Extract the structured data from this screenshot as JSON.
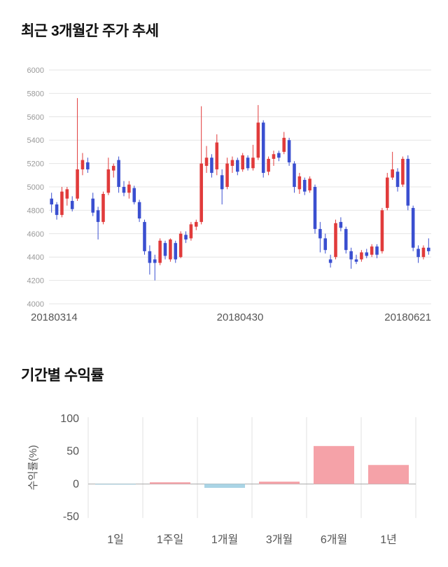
{
  "chart_data": [
    {
      "type": "candlestick",
      "title": "최근 3개월간 주가 추세",
      "ylim": [
        4000,
        6000
      ],
      "yticks": [
        4000,
        4200,
        4400,
        4600,
        4800,
        5000,
        5200,
        5400,
        5600,
        5800,
        6000
      ],
      "xticks": [
        {
          "label": "20180314",
          "pos": 0.0,
          "anchor": "start",
          "dx": -26
        },
        {
          "label": "20180430",
          "pos": 0.5,
          "anchor": "middle",
          "dx": 0
        },
        {
          "label": "20180621",
          "pos": 1.0,
          "anchor": "end",
          "dx": 0
        }
      ],
      "grid": "horizontal",
      "up_color": "#e13b3b",
      "down_color": "#3a4fd0",
      "grid_color": "#e4e4e4",
      "tick_color": "#999999",
      "xtick_color": "#555555",
      "ohlc_note": "each candle is [open, high, low, close]",
      "candles": [
        [
          4900,
          4950,
          4780,
          4850
        ],
        [
          4850,
          4870,
          4720,
          4760
        ],
        [
          4760,
          5000,
          4740,
          4960
        ],
        [
          4900,
          5000,
          4840,
          4980
        ],
        [
          4880,
          4920,
          4790,
          4810
        ],
        [
          4900,
          5760,
          4880,
          5150
        ],
        [
          5150,
          5290,
          5100,
          5230
        ],
        [
          5210,
          5250,
          5120,
          5150
        ],
        [
          4900,
          4950,
          4750,
          4780
        ],
        [
          4800,
          4830,
          4550,
          4700
        ],
        [
          4700,
          4960,
          4680,
          4940
        ],
        [
          4950,
          5250,
          4930,
          5150
        ],
        [
          5140,
          5200,
          5080,
          5180
        ],
        [
          5230,
          5260,
          4950,
          5000
        ],
        [
          5000,
          5050,
          4920,
          4950
        ],
        [
          4950,
          5050,
          4900,
          5020
        ],
        [
          4990,
          5010,
          4850,
          4870
        ],
        [
          4870,
          4890,
          4700,
          4730
        ],
        [
          4700,
          4720,
          4420,
          4450
        ],
        [
          4450,
          4500,
          4250,
          4350
        ],
        [
          4380,
          4420,
          4200,
          4350
        ],
        [
          4350,
          4560,
          4330,
          4540
        ],
        [
          4520,
          4540,
          4380,
          4410
        ],
        [
          4380,
          4560,
          4360,
          4550
        ],
        [
          4520,
          4540,
          4350,
          4380
        ],
        [
          4400,
          4620,
          4390,
          4600
        ],
        [
          4590,
          4620,
          4520,
          4550
        ],
        [
          4560,
          4700,
          4540,
          4680
        ],
        [
          4660,
          4720,
          4630,
          4700
        ],
        [
          4700,
          5690,
          4680,
          5200
        ],
        [
          5180,
          5350,
          5120,
          5250
        ],
        [
          5250,
          5280,
          5080,
          5120
        ],
        [
          5150,
          5450,
          5100,
          5380
        ],
        [
          5100,
          5150,
          4850,
          4980
        ],
        [
          5000,
          5250,
          4980,
          5200
        ],
        [
          5180,
          5260,
          5120,
          5230
        ],
        [
          5230,
          5250,
          5100,
          5130
        ],
        [
          5150,
          5290,
          5130,
          5270
        ],
        [
          5250,
          5270,
          5140,
          5160
        ],
        [
          5160,
          5360,
          5140,
          5250
        ],
        [
          5250,
          5700,
          5230,
          5550
        ],
        [
          5550,
          5570,
          5080,
          5120
        ],
        [
          5130,
          5260,
          5100,
          5240
        ],
        [
          5240,
          5310,
          5180,
          5280
        ],
        [
          5290,
          5310,
          5220,
          5250
        ],
        [
          5300,
          5470,
          5280,
          5420
        ],
        [
          5400,
          5420,
          5180,
          5210
        ],
        [
          5200,
          5220,
          4950,
          5000
        ],
        [
          4980,
          5120,
          4940,
          5090
        ],
        [
          5060,
          5080,
          4930,
          4960
        ],
        [
          4970,
          5090,
          4950,
          5070
        ],
        [
          5000,
          5020,
          4600,
          4640
        ],
        [
          4640,
          4700,
          4440,
          4560
        ],
        [
          4560,
          4600,
          4430,
          4460
        ],
        [
          4380,
          4420,
          4310,
          4350
        ],
        [
          4400,
          4720,
          4380,
          4690
        ],
        [
          4700,
          4740,
          4620,
          4650
        ],
        [
          4640,
          4660,
          4430,
          4460
        ],
        [
          4450,
          4480,
          4300,
          4380
        ],
        [
          4380,
          4420,
          4340,
          4360
        ],
        [
          4380,
          4460,
          4360,
          4440
        ],
        [
          4440,
          4470,
          4390,
          4410
        ],
        [
          4420,
          4510,
          4400,
          4490
        ],
        [
          4490,
          4510,
          4390,
          4420
        ],
        [
          4450,
          4820,
          4430,
          4800
        ],
        [
          4820,
          5120,
          4800,
          5080
        ],
        [
          5080,
          5300,
          5060,
          5150
        ],
        [
          5130,
          5160,
          4960,
          5000
        ],
        [
          5020,
          5260,
          5000,
          5240
        ],
        [
          5240,
          5270,
          4800,
          4840
        ],
        [
          4820,
          4840,
          4450,
          4480
        ],
        [
          4470,
          4500,
          4350,
          4400
        ],
        [
          4400,
          4500,
          4380,
          4480
        ],
        [
          4480,
          4560,
          4420,
          4450
        ]
      ]
    },
    {
      "type": "bar",
      "title": "기간별 수익률",
      "categories": [
        "1일",
        "1주일",
        "1개월",
        "3개월",
        "6개월",
        "1년"
      ],
      "values": [
        -0.5,
        2.5,
        -6,
        3.5,
        58,
        29
      ],
      "ylabel": "수익률(%)",
      "ylim": [
        -50,
        100
      ],
      "yticks": [
        100,
        50,
        0,
        -50
      ],
      "grid": "vertical",
      "legend": "none",
      "positive_color": "#f5a2a8",
      "negative_color": "#a9d4e5",
      "baseline_color": "#aaaaaa",
      "grid_color": "#e0e0e0",
      "tick_color": "#555555"
    }
  ]
}
